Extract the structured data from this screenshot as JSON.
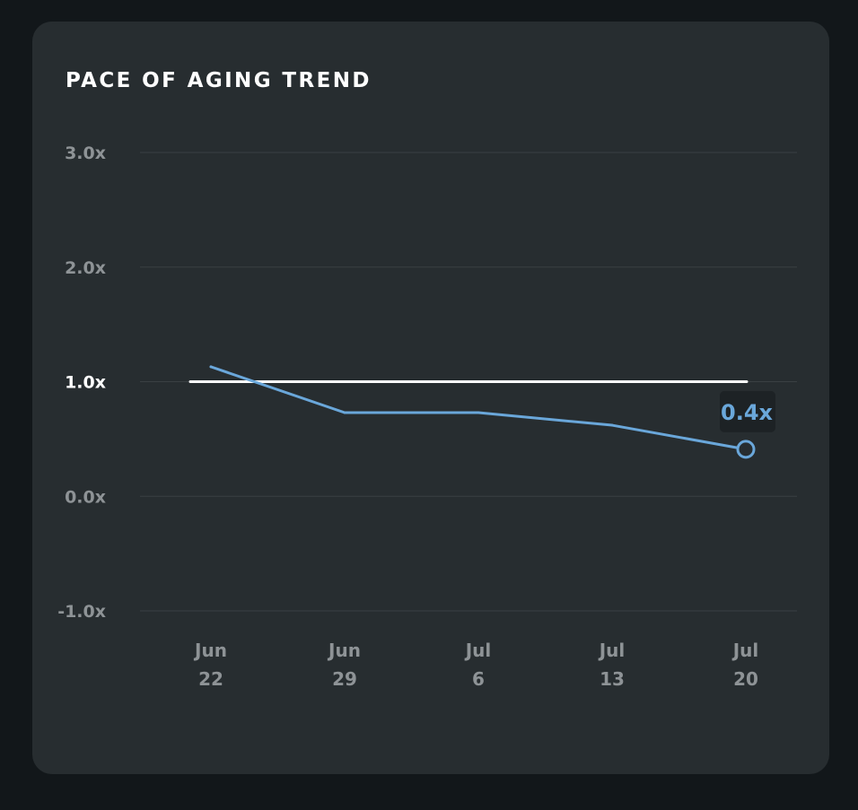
{
  "card": {
    "title": "PACE OF AGING TREND"
  },
  "colors": {
    "page_background": "#12171a",
    "card_background": "#272d30",
    "series_line": "#6aa7da",
    "reference_line": "#ffffff",
    "grid_line": "#3a4043",
    "tick_text": "#8e9396",
    "callout_background": "#1d2225"
  },
  "chart_data": {
    "type": "line",
    "title": "PACE OF AGING TREND",
    "xlabel": "",
    "ylabel": "",
    "x_tick_labels": [
      {
        "month": "Jun",
        "day": "22"
      },
      {
        "month": "Jun",
        "day": "29"
      },
      {
        "month": "Jul",
        "day": "6"
      },
      {
        "month": "Jul",
        "day": "13"
      },
      {
        "month": "Jul",
        "day": "20"
      }
    ],
    "y_ticks": [
      {
        "value": -1.0,
        "label": "-1.0x"
      },
      {
        "value": 0.0,
        "label": "0.0x"
      },
      {
        "value": 1.0,
        "label": "1.0x"
      },
      {
        "value": 2.0,
        "label": "2.0x"
      },
      {
        "value": 3.0,
        "label": "3.0x"
      }
    ],
    "ylim": [
      -1.0,
      3.0
    ],
    "grid": true,
    "legend": "none",
    "reference_line": {
      "y": 1.0,
      "x_start": 0,
      "x_end": 4
    },
    "series": [
      {
        "points": [
          {
            "x": 0,
            "y": 1.13
          },
          {
            "x": 1,
            "y": 0.73
          },
          {
            "x": 2,
            "y": 0.73
          },
          {
            "x": 3,
            "y": 0.62
          },
          {
            "x": 4,
            "y": 0.41
          }
        ]
      }
    ],
    "callout": {
      "point_index": 4,
      "label": "0.4x"
    }
  }
}
